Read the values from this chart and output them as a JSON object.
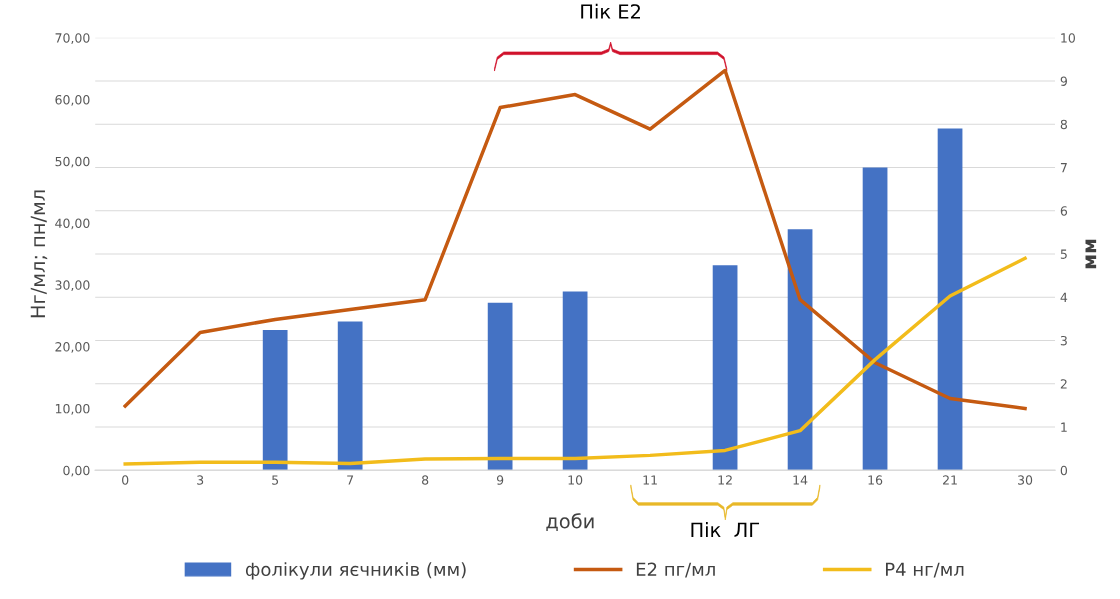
{
  "chart_data": {
    "type": "bar",
    "annotations": [
      "Пік Е2",
      "Пік  ЛГ"
    ],
    "xlabel": "доби",
    "ylabel": "Нг/мл; пн/мл",
    "y2label": "мм",
    "categories": [
      "0",
      "3",
      "5",
      "7",
      "8",
      "9",
      "10",
      "11",
      "12",
      "14",
      "16",
      "21",
      "30"
    ],
    "series": [
      {
        "name": "фолікули яєчників (мм)",
        "axis": "y2",
        "color": "#4472c4",
        "values": [
          null,
          null,
          3.24,
          3.44,
          null,
          3.87,
          4.13,
          null,
          4.74,
          5.57,
          7.0,
          7.9,
          null
        ]
      },
      {
        "name": "Е2 пг/мл",
        "type": "line",
        "color": "#c55a11",
        "values": [
          10.4,
          22.3,
          24.4,
          26.0,
          27.6,
          58.7,
          60.8,
          55.2,
          64.7,
          27.6,
          17.4,
          11.6,
          10.0
        ]
      },
      {
        "name": "Р4 нг/мл",
        "type": "line",
        "color": "#f2bc1b",
        "values": [
          1.0,
          1.3,
          1.3,
          1.1,
          1.8,
          1.9,
          1.9,
          2.4,
          3.2,
          6.4,
          17.9,
          28.2,
          34.3
        ]
      }
    ],
    "ylim": [
      0,
      70
    ],
    "yticks": [
      {
        "value": 0,
        "label": "0,00"
      },
      {
        "value": 10,
        "label": "10,00"
      },
      {
        "value": 20,
        "label": "20,00"
      },
      {
        "value": 30,
        "label": "30,00"
      },
      {
        "value": 40,
        "label": "40,00"
      },
      {
        "value": 50,
        "label": "50,00"
      },
      {
        "value": 60,
        "label": "60,00"
      },
      {
        "value": 70,
        "label": "70,00"
      }
    ],
    "y2lim": [
      0,
      10
    ],
    "y2ticks": [
      0,
      1,
      2,
      3,
      4,
      5,
      6,
      7,
      8,
      9,
      10
    ],
    "grid": "y",
    "legend": "bottom",
    "line_style": "solid",
    "marker": "none"
  }
}
